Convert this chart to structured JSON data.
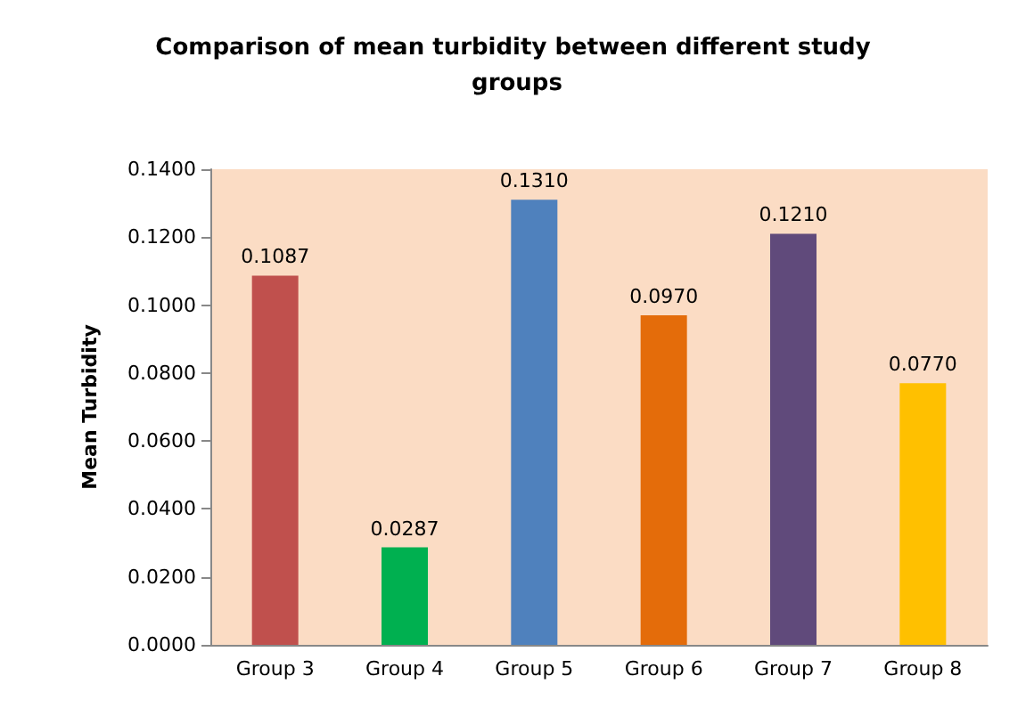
{
  "chart_data": {
    "type": "bar",
    "title": "Comparison of mean turbidity between different study groups",
    "ylabel": "Mean Turbidity",
    "categories": [
      "Group 3",
      "Group 4",
      "Group 5",
      "Group 6",
      "Group 7",
      "Group 8"
    ],
    "values": [
      0.1087,
      0.0287,
      0.131,
      0.097,
      0.121,
      0.077
    ],
    "colors": [
      "#c0504d",
      "#00b050",
      "#4f81bd",
      "#e46c0a",
      "#604a7b",
      "#ffc000"
    ],
    "value_labels": [
      "0.1087",
      "0.0287",
      "0.1310",
      "0.0970",
      "0.1210",
      "0.0770"
    ],
    "ylim": [
      0,
      0.14
    ],
    "yticks": [
      {
        "value": 0,
        "label": "0.0000"
      },
      {
        "value": 0.02,
        "label": "0.0200"
      },
      {
        "value": 0.04,
        "label": "0.0400"
      },
      {
        "value": 0.06,
        "label": "0.0600"
      },
      {
        "value": 0.08,
        "label": "0.0800"
      },
      {
        "value": 0.1,
        "label": "0.1000"
      },
      {
        "value": 0.12,
        "label": "0.1200"
      },
      {
        "value": 0.14,
        "label": "0.1400"
      }
    ]
  }
}
